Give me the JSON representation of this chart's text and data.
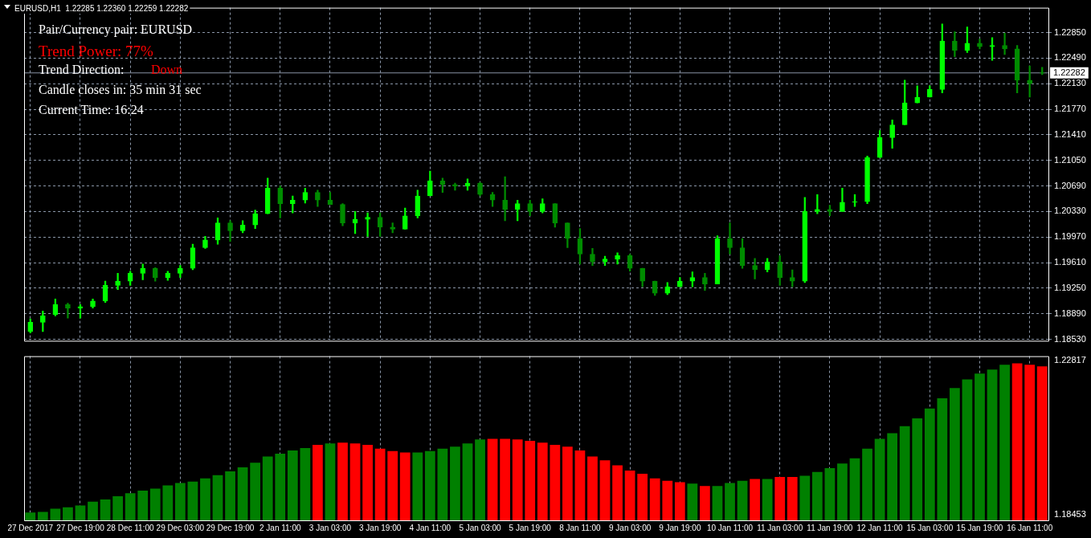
{
  "chart_data": [
    {
      "type": "candlestick",
      "title": "EURUSD,H1  1.22285 1.22360 1.22259 1.22282",
      "annotations": [
        "Pair/Currency pair: EURUSD",
        "Trend Power: 77%",
        "Trend Direction:",
        "Down",
        "Candle closes in: 35 min 31 sec",
        "Current Time: 16:24"
      ],
      "categories": [
        null,
        null,
        null,
        null,
        null,
        null,
        null,
        null,
        null,
        null,
        null,
        null,
        null,
        null,
        null,
        null,
        null,
        null,
        null,
        null,
        null,
        null,
        null,
        null,
        null,
        null,
        null,
        null,
        null,
        null,
        null,
        null,
        null,
        null,
        null,
        null,
        null,
        null,
        null,
        null,
        null,
        null,
        null,
        null,
        null,
        null,
        null,
        null,
        null,
        null,
        null,
        null,
        null,
        null,
        null,
        null,
        null,
        null,
        null,
        null,
        null,
        null,
        null,
        null,
        null,
        null,
        null,
        null,
        null,
        null,
        null,
        null,
        null,
        null,
        null,
        null,
        null,
        null,
        null,
        null,
        null,
        null
      ],
      "ohlc": [
        [
          1.1864,
          1.1882,
          1.1862,
          1.1877
        ],
        [
          1.1877,
          1.1893,
          1.1864,
          1.1886
        ],
        [
          1.1888,
          1.191,
          1.1886,
          1.1902
        ],
        [
          1.1902,
          1.1904,
          1.1883,
          1.1897
        ],
        [
          1.1897,
          1.1902,
          1.1883,
          1.1899
        ],
        [
          1.1899,
          1.191,
          1.1897,
          1.1907
        ],
        [
          1.1907,
          1.1935,
          1.1905,
          1.1929
        ],
        [
          1.1929,
          1.1946,
          1.1923,
          1.1935
        ],
        [
          1.1935,
          1.1949,
          1.1929,
          1.1946
        ],
        [
          1.1946,
          1.1959,
          1.1937,
          1.1953
        ],
        [
          1.1953,
          1.1954,
          1.1935,
          1.194
        ],
        [
          1.194,
          1.1949,
          1.1936,
          1.1946
        ],
        [
          1.1946,
          1.1957,
          1.194,
          1.1953
        ],
        [
          1.1953,
          1.1987,
          1.1951,
          1.1982
        ],
        [
          1.1982,
          1.1998,
          1.1981,
          1.1993
        ],
        [
          1.1993,
          1.2024,
          1.1987,
          1.2017
        ],
        [
          1.2017,
          1.202,
          1.1991,
          1.2006
        ],
        [
          1.2006,
          1.202,
          1.2003,
          1.2014
        ],
        [
          1.2014,
          1.2035,
          1.2009,
          1.203
        ],
        [
          1.203,
          1.208,
          1.203,
          1.2066
        ],
        [
          1.2066,
          1.2069,
          1.2024,
          1.2044
        ],
        [
          1.2044,
          1.2055,
          1.2031,
          1.2049
        ],
        [
          1.2049,
          1.2066,
          1.2045,
          1.206
        ],
        [
          1.206,
          1.2063,
          1.204,
          1.2049
        ],
        [
          1.2049,
          1.206,
          1.2043,
          1.2043
        ],
        [
          1.2043,
          1.2044,
          1.2013,
          1.2017
        ],
        [
          1.2017,
          1.2033,
          1.2002,
          1.2022
        ],
        [
          1.2022,
          1.2031,
          1.1998,
          1.2025
        ],
        [
          1.2025,
          1.2031,
          1.1998,
          1.2011
        ],
        [
          1.2011,
          1.2017,
          1.2003,
          1.2008
        ],
        [
          1.2008,
          1.2038,
          1.2008,
          1.2027
        ],
        [
          1.2027,
          1.2063,
          1.2024,
          1.2055
        ],
        [
          1.2055,
          1.209,
          1.2055,
          1.2076
        ],
        [
          1.2076,
          1.208,
          1.206,
          1.2071
        ],
        [
          1.2071,
          1.2073,
          1.2063,
          1.2069
        ],
        [
          1.2069,
          1.2079,
          1.2063,
          1.2073
        ],
        [
          1.2073,
          1.2074,
          1.2055,
          1.2057
        ],
        [
          1.2057,
          1.206,
          1.204,
          1.2049
        ],
        [
          1.2049,
          1.2082,
          1.202,
          1.2036
        ],
        [
          1.2036,
          1.2049,
          1.202,
          1.2044
        ],
        [
          1.2044,
          1.2049,
          1.2027,
          1.2033
        ],
        [
          1.2033,
          1.2051,
          1.2031,
          1.2044
        ],
        [
          1.2044,
          1.2044,
          1.2011,
          1.2017
        ],
        [
          1.2017,
          1.2017,
          1.1982,
          1.1995
        ],
        [
          1.1995,
          1.2009,
          1.1959,
          1.1973
        ],
        [
          1.1973,
          1.1981,
          1.1957,
          1.1962
        ],
        [
          1.1962,
          1.197,
          1.1957,
          1.1966
        ],
        [
          1.1966,
          1.1975,
          1.1959,
          1.1971
        ],
        [
          1.1971,
          1.1973,
          1.1949,
          1.1953
        ],
        [
          1.1953,
          1.1953,
          1.1927,
          1.1935
        ],
        [
          1.1935,
          1.1935,
          1.1915,
          1.1918
        ],
        [
          1.1918,
          1.1933,
          1.1916,
          1.1927
        ],
        [
          1.1927,
          1.194,
          1.1927,
          1.1935
        ],
        [
          1.1935,
          1.1948,
          1.1927,
          1.194
        ],
        [
          1.194,
          1.1946,
          1.1922,
          1.1931
        ],
        [
          1.1931,
          1.1999,
          1.1931,
          1.1995
        ],
        [
          1.1995,
          1.2017,
          1.1973,
          1.1982
        ],
        [
          1.1982,
          1.1995,
          1.1953,
          1.1957
        ],
        [
          1.1957,
          1.1967,
          1.1938,
          1.1951
        ],
        [
          1.1951,
          1.1967,
          1.1948,
          1.1962
        ],
        [
          1.1962,
          1.1971,
          1.1929,
          1.194
        ],
        [
          1.194,
          1.1951,
          1.1927,
          1.1935
        ],
        [
          1.1935,
          1.2053,
          1.1933,
          1.2033
        ],
        [
          1.2033,
          1.2057,
          1.203,
          1.2036
        ],
        [
          1.2036,
          1.2042,
          1.2027,
          1.2033
        ],
        [
          1.2033,
          1.2066,
          1.2033,
          1.2046
        ],
        [
          1.2046,
          1.2057,
          1.204,
          1.2047
        ],
        [
          1.2047,
          1.2111,
          1.2044,
          1.2109
        ],
        [
          1.2109,
          1.2147,
          1.2109,
          1.2137
        ],
        [
          1.2137,
          1.2162,
          1.2122,
          1.2155
        ],
        [
          1.2155,
          1.2218,
          1.2155,
          1.2186
        ],
        [
          1.2186,
          1.221,
          1.2186,
          1.2194
        ],
        [
          1.2194,
          1.221,
          1.2194,
          1.2205
        ],
        [
          1.2205,
          1.2297,
          1.22,
          1.2273
        ],
        [
          1.2273,
          1.2286,
          1.2251,
          1.226
        ],
        [
          1.226,
          1.2293,
          1.2257,
          1.227
        ],
        [
          1.227,
          1.2276,
          1.2262,
          1.2265
        ],
        [
          1.2265,
          1.2278,
          1.2246,
          1.2267
        ],
        [
          1.2267,
          1.2284,
          1.2254,
          1.2262
        ],
        [
          1.2262,
          1.2267,
          1.22,
          1.2218
        ],
        [
          1.2218,
          1.2238,
          1.2194,
          1.2213
        ],
        [
          1.22285,
          1.2236,
          1.22259,
          1.22282
        ]
      ],
      "colors": [
        "#00ff00",
        "#00ff00",
        "#00ff00",
        "#008c00",
        "#00ff00",
        "#00ff00",
        "#00ff00",
        "#00ff00",
        "#00ff00",
        "#00ff00",
        "#008c00",
        "#00ff00",
        "#00ff00",
        "#00ff00",
        "#00ff00",
        "#00ff00",
        "#008c00",
        "#00ff00",
        "#00ff00",
        "#00ff00",
        "#008c00",
        "#00ff00",
        "#00ff00",
        "#008c00",
        "#008c00",
        "#008c00",
        "#00ff00",
        "#00ff00",
        "#008c00",
        "#008c00",
        "#00ff00",
        "#00ff00",
        "#00ff00",
        "#008c00",
        "#008c00",
        "#00ff00",
        "#008c00",
        "#008c00",
        "#008c00",
        "#00ff00",
        "#008c00",
        "#00ff00",
        "#008c00",
        "#008c00",
        "#008c00",
        "#008c00",
        "#00ff00",
        "#00ff00",
        "#008c00",
        "#008c00",
        "#008c00",
        "#00ff00",
        "#00ff00",
        "#00ff00",
        "#008c00",
        "#00ff00",
        "#008c00",
        "#008c00",
        "#008c00",
        "#00ff00",
        "#008c00",
        "#008c00",
        "#00ff00",
        "#00ff00",
        "#008c00",
        "#00ff00",
        "#00ff00",
        "#00ff00",
        "#00ff00",
        "#00ff00",
        "#00ff00",
        "#00ff00",
        "#00ff00",
        "#00ff00",
        "#008c00",
        "#00ff00",
        "#008c00",
        "#00ff00",
        "#008c00",
        "#008c00",
        "#008c00",
        "#008c00"
      ],
      "ylim": [
        1.1851,
        1.232
      ],
      "yticks": [
        {
          "value": 1.1853,
          "label": "1.18530"
        },
        {
          "value": 1.1889,
          "label": "1.18890"
        },
        {
          "value": 1.1925,
          "label": "1.19250"
        },
        {
          "value": 1.1961,
          "label": "1.19610"
        },
        {
          "value": 1.1997,
          "label": "1.19970"
        },
        {
          "value": 1.2033,
          "label": "1.20330"
        },
        {
          "value": 1.2069,
          "label": "1.20690"
        },
        {
          "value": 1.2105,
          "label": "1.21050"
        },
        {
          "value": 1.2141,
          "label": "1.21410"
        },
        {
          "value": 1.2177,
          "label": "1.21770"
        },
        {
          "value": 1.2213,
          "label": "1.22130"
        },
        {
          "value": 1.2249,
          "label": "1.22490"
        },
        {
          "value": 1.2285,
          "label": "1.22850"
        }
      ],
      "ref_lines": [
        {
          "axis": "y",
          "value": 1.22282,
          "label": "1.22282",
          "color": "#8a96a8"
        }
      ],
      "grid": true,
      "tick_labels": "y"
    },
    {
      "type": "bar",
      "categories": [
        "27 Dec 2017",
        null,
        null,
        null,
        "27 Dec 19:00",
        null,
        null,
        null,
        "28 Dec 11:00",
        null,
        null,
        null,
        "29 Dec 03:00",
        null,
        null,
        null,
        "29 Dec 19:00",
        null,
        null,
        null,
        "2 Jan 11:00",
        null,
        null,
        null,
        "3 Jan 03:00",
        null,
        null,
        null,
        "3 Jan 19:00",
        null,
        null,
        null,
        "4 Jan 11:00",
        null,
        null,
        null,
        "5 Jan 03:00",
        null,
        null,
        null,
        "5 Jan 19:00",
        null,
        null,
        null,
        "8 Jan 11:00",
        null,
        null,
        null,
        "9 Jan 03:00",
        null,
        null,
        null,
        "9 Jan 19:00",
        null,
        null,
        null,
        "10 Jan 11:00",
        null,
        null,
        null,
        "11 Jan 03:00",
        null,
        null,
        null,
        "11 Jan 19:00",
        null,
        null,
        null,
        "12 Jan 11:00",
        null,
        null,
        null,
        "15 Jan 03:00",
        null,
        null,
        null,
        "15 Jan 19:00",
        null,
        null,
        null,
        "16 Jan 11:00",
        null
      ],
      "values": [
        1.1852,
        1.1854,
        1.1863,
        1.1867,
        1.1872,
        1.1883,
        1.1889,
        1.1898,
        1.1907,
        1.1914,
        1.192,
        1.1929,
        1.1936,
        1.194,
        1.1949,
        1.1958,
        1.1969,
        1.198,
        1.1993,
        1.2011,
        1.2019,
        1.2028,
        1.2035,
        1.2044,
        1.2048,
        1.205,
        1.2048,
        1.2044,
        1.2033,
        1.2026,
        1.2022,
        1.2022,
        1.2026,
        1.2033,
        1.2039,
        1.2048,
        1.2059,
        1.2061,
        1.2061,
        1.2059,
        1.2055,
        1.205,
        1.2044,
        1.2039,
        1.2028,
        1.2011,
        1.2,
        1.1986,
        1.1971,
        1.1962,
        1.1949,
        1.1942,
        1.1938,
        1.1934,
        1.1927,
        1.1927,
        1.1936,
        1.1942,
        1.1947,
        1.1947,
        1.1953,
        1.1953,
        1.1956,
        1.1967,
        1.1978,
        1.1991,
        1.2006,
        1.2033,
        1.2061,
        1.2077,
        1.2097,
        1.2119,
        1.2147,
        1.2176,
        1.2205,
        1.2229,
        1.2246,
        1.2257,
        1.2271,
        1.2275,
        1.2271,
        1.2266
      ],
      "colors": [
        "#008000",
        "#008000",
        "#008000",
        "#008000",
        "#008000",
        "#008000",
        "#008000",
        "#008000",
        "#008000",
        "#008000",
        "#008000",
        "#008000",
        "#008000",
        "#008000",
        "#008000",
        "#008000",
        "#008000",
        "#008000",
        "#008000",
        "#008000",
        "#008000",
        "#008000",
        "#008000",
        "#ff0000",
        "#008000",
        "#ff0000",
        "#ff0000",
        "#ff0000",
        "#ff0000",
        "#ff0000",
        "#ff0000",
        "#008000",
        "#008000",
        "#008000",
        "#008000",
        "#008000",
        "#008000",
        "#ff0000",
        "#ff0000",
        "#ff0000",
        "#ff0000",
        "#ff0000",
        "#ff0000",
        "#ff0000",
        "#ff0000",
        "#ff0000",
        "#ff0000",
        "#ff0000",
        "#ff0000",
        "#ff0000",
        "#ff0000",
        "#ff0000",
        "#ff0000",
        "#008000",
        "#ff0000",
        "#008000",
        "#008000",
        "#008000",
        "#ff0000",
        "#008000",
        "#ff0000",
        "#ff0000",
        "#008000",
        "#008000",
        "#008000",
        "#008000",
        "#008000",
        "#008000",
        "#008000",
        "#008000",
        "#008000",
        "#008000",
        "#008000",
        "#008000",
        "#008000",
        "#008000",
        "#008000",
        "#008000",
        "#008000",
        "#ff0000",
        "#ff0000",
        "#ff0000"
      ],
      "ylim": [
        1.183,
        1.2295
      ],
      "yticks": [
        1.18453,
        1.22817
      ],
      "grid": "x"
    }
  ]
}
